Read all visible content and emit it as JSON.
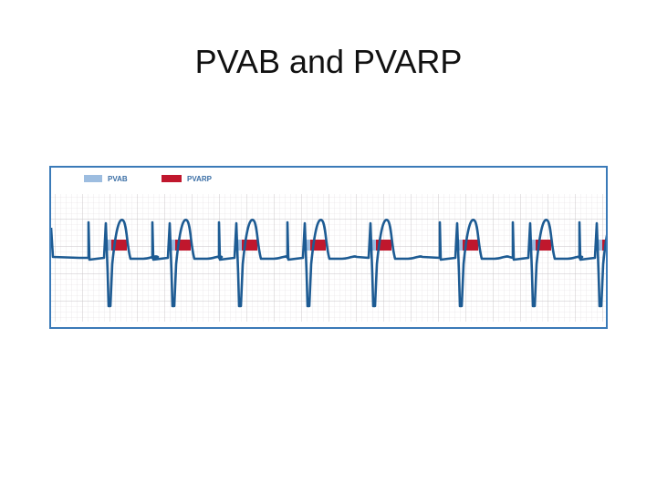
{
  "header": {
    "title": "PVAB and PVARP"
  },
  "legend": [
    {
      "label": "PVAB"
    },
    {
      "label": "PVARP"
    }
  ]
}
